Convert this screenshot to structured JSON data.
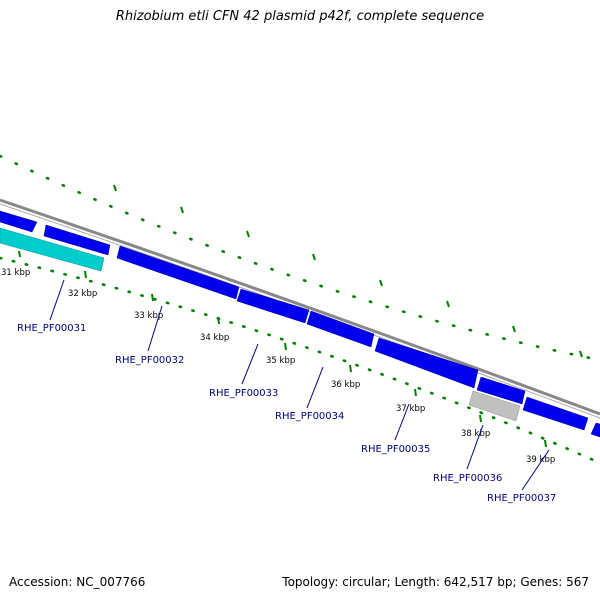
{
  "title": "Rhizobium etli CFN 42 plasmid p42f, complete sequence",
  "footer": {
    "accession": "Accession: NC_007766",
    "summary": "Topology: circular; Length: 642,517 bp; Genes: 567"
  },
  "colors": {
    "backbone": "#808080",
    "gene_forward": "#0000ee",
    "gene_highlight": "#00c8c8",
    "gene_other": "#b8b8b8",
    "tick": "#008000",
    "label": "#000080"
  },
  "kbp_ticks": [
    {
      "label": "31 kbp"
    },
    {
      "label": "32 kbp"
    },
    {
      "label": "33 kbp"
    },
    {
      "label": "34 kbp"
    },
    {
      "label": "35 kbp"
    },
    {
      "label": "36 kbp"
    },
    {
      "label": "37 kbp"
    },
    {
      "label": "38 kbp"
    },
    {
      "label": "39 kbp"
    }
  ],
  "gene_labels": [
    {
      "text": "RHE_PF00031"
    },
    {
      "text": "RHE_PF00032"
    },
    {
      "text": "RHE_PF00033"
    },
    {
      "text": "RHE_PF00034"
    },
    {
      "text": "RHE_PF00035"
    },
    {
      "text": "RHE_PF00036"
    },
    {
      "text": "RHE_PF00037"
    }
  ]
}
